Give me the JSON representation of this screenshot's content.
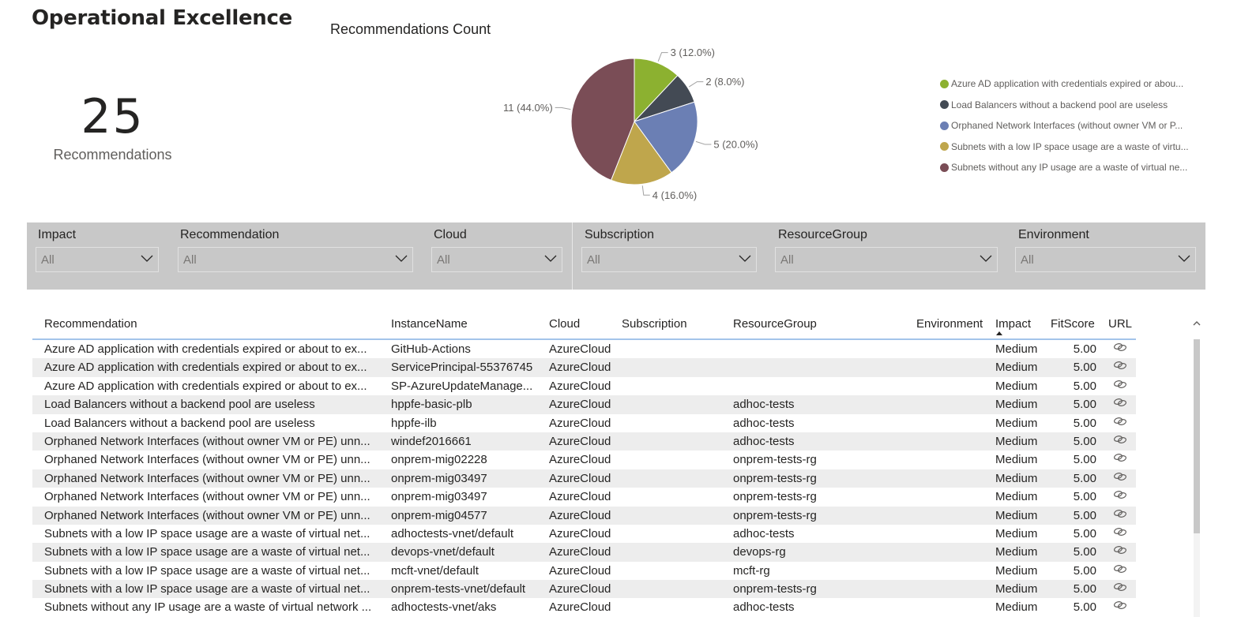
{
  "page": {
    "title": "Operational Excellence"
  },
  "card": {
    "value": "25",
    "label": "Recommendations"
  },
  "chart_data": {
    "type": "pie",
    "title": "Recommendations Count",
    "slices": [
      {
        "name": "Azure AD application with credentials expired or abou...",
        "value": 3,
        "label": "3 (12.0%)",
        "color": "#8cb130"
      },
      {
        "name": "Load Balancers without a backend pool are useless",
        "value": 2,
        "label": "2 (8.0%)",
        "color": "#434a54"
      },
      {
        "name": "Orphaned Network Interfaces (without owner VM or P...",
        "value": 5,
        "label": "5 (20.0%)",
        "color": "#6b7fb4"
      },
      {
        "name": "Subnets with a low IP space usage are a waste of virtu...",
        "value": 4,
        "label": "4 (16.0%)",
        "color": "#bfa64c"
      },
      {
        "name": "Subnets without any IP usage are a waste of virtual ne...",
        "value": 11,
        "label": "11 (44.0%)",
        "color": "#7a4d56"
      }
    ],
    "legend_position": "right"
  },
  "filters": [
    {
      "title": "Impact",
      "value": "All"
    },
    {
      "title": "Recommendation",
      "value": "All"
    },
    {
      "title": "Cloud",
      "value": "All"
    },
    {
      "title": "Subscription",
      "value": "All"
    },
    {
      "title": "ResourceGroup",
      "value": "All"
    },
    {
      "title": "Environment",
      "value": "All"
    }
  ],
  "table": {
    "headers": {
      "recommendation": "Recommendation",
      "instance": "InstanceName",
      "cloud": "Cloud",
      "subscription": "Subscription",
      "resource_group": "ResourceGroup",
      "environment": "Environment",
      "impact": "Impact",
      "fit_score": "FitScore",
      "url": "URL"
    },
    "rows": [
      {
        "recommendation": "Azure AD application with credentials expired or about to ex...",
        "instance": "GitHub-Actions",
        "cloud": "AzureCloud",
        "subscription": "",
        "resource_group": "",
        "environment": "",
        "impact": "Medium",
        "fit_score": "5.00"
      },
      {
        "recommendation": "Azure AD application with credentials expired or about to ex...",
        "instance": "ServicePrincipal-55376745",
        "cloud": "AzureCloud",
        "subscription": "",
        "resource_group": "",
        "environment": "",
        "impact": "Medium",
        "fit_score": "5.00"
      },
      {
        "recommendation": "Azure AD application with credentials expired or about to ex...",
        "instance": "SP-AzureUpdateManage...",
        "cloud": "AzureCloud",
        "subscription": "",
        "resource_group": "",
        "environment": "",
        "impact": "Medium",
        "fit_score": "5.00"
      },
      {
        "recommendation": "Load Balancers without a backend pool are useless",
        "instance": "hppfe-basic-plb",
        "cloud": "AzureCloud",
        "subscription": "",
        "resource_group": "adhoc-tests",
        "environment": "",
        "impact": "Medium",
        "fit_score": "5.00"
      },
      {
        "recommendation": "Load Balancers without a backend pool are useless",
        "instance": "hppfe-ilb",
        "cloud": "AzureCloud",
        "subscription": "",
        "resource_group": "adhoc-tests",
        "environment": "",
        "impact": "Medium",
        "fit_score": "5.00"
      },
      {
        "recommendation": "Orphaned Network Interfaces (without owner VM or PE) unn...",
        "instance": "windef2016661",
        "cloud": "AzureCloud",
        "subscription": "",
        "resource_group": "adhoc-tests",
        "environment": "",
        "impact": "Medium",
        "fit_score": "5.00"
      },
      {
        "recommendation": "Orphaned Network Interfaces (without owner VM or PE) unn...",
        "instance": "onprem-mig02228",
        "cloud": "AzureCloud",
        "subscription": "",
        "resource_group": "onprem-tests-rg",
        "environment": "",
        "impact": "Medium",
        "fit_score": "5.00"
      },
      {
        "recommendation": "Orphaned Network Interfaces (without owner VM or PE) unn...",
        "instance": "onprem-mig03497",
        "cloud": "AzureCloud",
        "subscription": "",
        "resource_group": "onprem-tests-rg",
        "environment": "",
        "impact": "Medium",
        "fit_score": "5.00"
      },
      {
        "recommendation": "Orphaned Network Interfaces (without owner VM or PE) unn...",
        "instance": "onprem-mig03497",
        "cloud": "AzureCloud",
        "subscription": "",
        "resource_group": "onprem-tests-rg",
        "environment": "",
        "impact": "Medium",
        "fit_score": "5.00"
      },
      {
        "recommendation": "Orphaned Network Interfaces (without owner VM or PE) unn...",
        "instance": "onprem-mig04577",
        "cloud": "AzureCloud",
        "subscription": "",
        "resource_group": "onprem-tests-rg",
        "environment": "",
        "impact": "Medium",
        "fit_score": "5.00"
      },
      {
        "recommendation": "Subnets with a low IP space usage are a waste of virtual net...",
        "instance": "adhoctests-vnet/default",
        "cloud": "AzureCloud",
        "subscription": "",
        "resource_group": "adhoc-tests",
        "environment": "",
        "impact": "Medium",
        "fit_score": "5.00"
      },
      {
        "recommendation": "Subnets with a low IP space usage are a waste of virtual net...",
        "instance": "devops-vnet/default",
        "cloud": "AzureCloud",
        "subscription": "",
        "resource_group": "devops-rg",
        "environment": "",
        "impact": "Medium",
        "fit_score": "5.00"
      },
      {
        "recommendation": "Subnets with a low IP space usage are a waste of virtual net...",
        "instance": "mcft-vnet/default",
        "cloud": "AzureCloud",
        "subscription": "",
        "resource_group": "mcft-rg",
        "environment": "",
        "impact": "Medium",
        "fit_score": "5.00"
      },
      {
        "recommendation": "Subnets with a low IP space usage are a waste of virtual net...",
        "instance": "onprem-tests-vnet/default",
        "cloud": "AzureCloud",
        "subscription": "",
        "resource_group": "onprem-tests-rg",
        "environment": "",
        "impact": "Medium",
        "fit_score": "5.00"
      },
      {
        "recommendation": "Subnets without any IP usage are a waste of virtual network ...",
        "instance": "adhoctests-vnet/aks",
        "cloud": "AzureCloud",
        "subscription": "",
        "resource_group": "adhoc-tests",
        "environment": "",
        "impact": "Medium",
        "fit_score": "5.00"
      }
    ]
  },
  "icons": {
    "url_link": "link-icon",
    "dropdown": "chevron-down-icon",
    "sort": "sort-ascending-icon",
    "scroll_up": "scroll-up-icon"
  }
}
